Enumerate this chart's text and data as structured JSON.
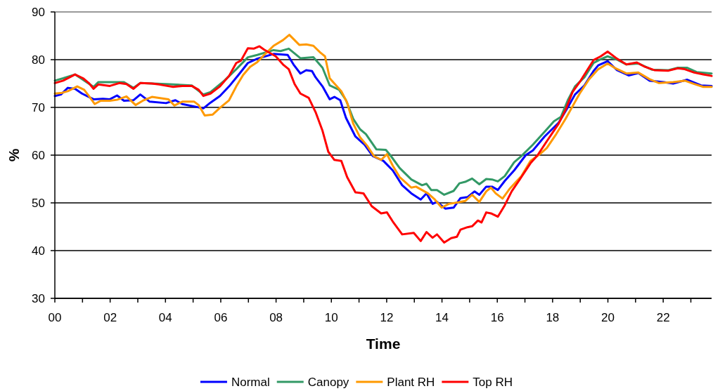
{
  "chart_data": {
    "type": "line",
    "xlabel": "Time",
    "ylabel": "%",
    "xlim": [
      0,
      23.75
    ],
    "ylim": [
      30,
      90
    ],
    "xticks": [
      {
        "value": 0,
        "label": "00"
      },
      {
        "value": 1,
        "label": null
      },
      {
        "value": 2,
        "label": "02"
      },
      {
        "value": 3,
        "label": null
      },
      {
        "value": 4,
        "label": "04"
      },
      {
        "value": 5,
        "label": null
      },
      {
        "value": 6,
        "label": "06"
      },
      {
        "value": 7,
        "label": null
      },
      {
        "value": 8,
        "label": "08"
      },
      {
        "value": 9,
        "label": null
      },
      {
        "value": 10,
        "label": "10"
      },
      {
        "value": 11,
        "label": null
      },
      {
        "value": 12,
        "label": "12"
      },
      {
        "value": 13,
        "label": null
      },
      {
        "value": 14,
        "label": "14"
      },
      {
        "value": 15,
        "label": null
      },
      {
        "value": 16,
        "label": "16"
      },
      {
        "value": 17,
        "label": null
      },
      {
        "value": 18,
        "label": "18"
      },
      {
        "value": 19,
        "label": null
      },
      {
        "value": 20,
        "label": "20"
      },
      {
        "value": 21,
        "label": null
      },
      {
        "value": 22,
        "label": "22"
      },
      {
        "value": 23,
        "label": null
      }
    ],
    "yticks": [
      30,
      40,
      50,
      60,
      70,
      80,
      90
    ],
    "grid": "y",
    "legend": "bottom",
    "line_style": "solid",
    "series": [
      {
        "name": "Normal",
        "color": "#0000ff",
        "x": [
          0,
          0.22,
          0.47,
          0.73,
          0.98,
          1.4,
          1.74,
          1.99,
          2.25,
          2.5,
          2.84,
          3.09,
          3.43,
          4.02,
          4.36,
          4.61,
          5.04,
          5.37,
          5.63,
          5.97,
          6.3,
          6.64,
          6.98,
          7.32,
          7.91,
          8.42,
          8.63,
          8.88,
          9.09,
          9.3,
          9.43,
          9.68,
          9.94,
          10.11,
          10.32,
          10.53,
          10.87,
          11.2,
          11.5,
          11.88,
          12.22,
          12.56,
          12.89,
          13.23,
          13.44,
          13.66,
          13.82,
          14.12,
          14.42,
          14.67,
          14.92,
          15.18,
          15.35,
          15.6,
          15.81,
          16.02,
          16.27,
          16.61,
          17.03,
          17.29,
          17.71,
          18.22,
          18.55,
          18.81,
          19.15,
          19.48,
          19.65,
          19.99,
          20.33,
          20.75,
          21.1,
          21.51,
          22.02,
          22.36,
          22.87,
          23.37,
          23.75
        ],
        "values": [
          72.4,
          72.7,
          74.1,
          73.9,
          72.9,
          71.7,
          71.8,
          71.7,
          72.5,
          71.4,
          71.5,
          72.7,
          71.2,
          70.9,
          71.5,
          70.7,
          70.2,
          69.8,
          71.0,
          72.4,
          74.4,
          76.8,
          79.3,
          80.2,
          81.2,
          81.0,
          79.0,
          77.1,
          77.8,
          77.6,
          76.3,
          74.4,
          71.7,
          72.2,
          71.5,
          67.8,
          63.9,
          62.2,
          59.8,
          58.8,
          56.8,
          53.7,
          52.0,
          50.7,
          52.0,
          49.8,
          50.2,
          48.8,
          49.0,
          51.0,
          51.2,
          52.4,
          51.7,
          53.4,
          53.4,
          52.7,
          54.6,
          56.8,
          60.0,
          61.0,
          63.9,
          66.8,
          70.0,
          72.7,
          74.6,
          77.6,
          78.8,
          79.7,
          77.8,
          76.7,
          77.2,
          75.6,
          75.3,
          75.0,
          75.8,
          74.6,
          74.5
        ]
      },
      {
        "name": "Canopy",
        "color": "#339966",
        "x": [
          0,
          0.3,
          0.73,
          1.4,
          1.57,
          2.5,
          2.84,
          3.09,
          4.02,
          4.95,
          5.37,
          5.63,
          6.13,
          6.56,
          6.98,
          7.32,
          7.91,
          8.16,
          8.46,
          8.88,
          9.35,
          9.68,
          9.94,
          10.28,
          10.53,
          10.79,
          11.04,
          11.25,
          11.63,
          11.97,
          12.13,
          12.47,
          12.89,
          13.28,
          13.44,
          13.61,
          13.82,
          14.08,
          14.42,
          14.63,
          14.84,
          15.09,
          15.35,
          15.6,
          15.81,
          16.02,
          16.27,
          16.61,
          16.87,
          17.29,
          17.71,
          18.05,
          18.3,
          18.55,
          18.81,
          19.15,
          19.48,
          19.74,
          19.99,
          20.33,
          20.67,
          21.1,
          21.6,
          22.19,
          22.53,
          22.87,
          23.21,
          23.75
        ],
        "values": [
          75.6,
          76.1,
          76.9,
          74.3,
          75.3,
          75.3,
          74.1,
          75.1,
          74.9,
          74.6,
          72.7,
          73.2,
          75.6,
          78.0,
          80.5,
          81.0,
          82.0,
          81.8,
          82.3,
          80.3,
          80.5,
          78.3,
          74.6,
          73.7,
          71.5,
          67.6,
          65.4,
          64.4,
          61.2,
          61.1,
          60.0,
          57.3,
          54.9,
          53.7,
          54.0,
          52.7,
          52.7,
          51.7,
          52.5,
          54.1,
          54.4,
          55.1,
          53.9,
          55.0,
          54.9,
          54.5,
          55.6,
          58.5,
          59.8,
          62.2,
          64.9,
          67.1,
          68.0,
          71.5,
          74.4,
          76.3,
          79.3,
          80.1,
          80.7,
          80.0,
          79.0,
          79.2,
          77.9,
          77.8,
          78.3,
          78.3,
          77.4,
          77.1
        ]
      },
      {
        "name": "Plant RH",
        "color": "#ff9900",
        "x": [
          0,
          0.22,
          0.47,
          0.81,
          1.06,
          1.23,
          1.44,
          1.66,
          1.99,
          2.25,
          2.59,
          2.92,
          3.18,
          3.51,
          4.11,
          4.32,
          4.61,
          5.04,
          5.2,
          5.42,
          5.71,
          5.97,
          6.3,
          6.56,
          6.81,
          7.06,
          7.32,
          7.66,
          7.91,
          8.25,
          8.48,
          8.84,
          9.09,
          9.35,
          9.6,
          9.77,
          9.94,
          10.36,
          10.57,
          10.79,
          11.04,
          11.29,
          11.54,
          11.8,
          12.01,
          12.22,
          12.47,
          12.89,
          13.06,
          13.49,
          13.74,
          13.99,
          14.25,
          14.59,
          14.84,
          15.09,
          15.35,
          15.6,
          15.77,
          15.94,
          16.19,
          16.44,
          16.87,
          17.2,
          17.54,
          17.79,
          18.13,
          18.47,
          18.72,
          18.98,
          19.32,
          19.65,
          19.99,
          20.24,
          20.67,
          21.1,
          21.51,
          21.85,
          22.36,
          22.78,
          23.12,
          23.45,
          23.75
        ],
        "values": [
          72.9,
          73.0,
          73.4,
          74.4,
          73.7,
          72.4,
          70.7,
          71.4,
          71.4,
          71.6,
          72.3,
          70.5,
          71.4,
          72.2,
          71.7,
          70.4,
          71.2,
          71.2,
          70.5,
          68.3,
          68.5,
          69.9,
          71.5,
          74.4,
          76.8,
          78.5,
          79.5,
          81.5,
          82.9,
          84.1,
          85.2,
          83.1,
          83.2,
          82.9,
          81.5,
          80.7,
          76.1,
          73.4,
          71.0,
          66.6,
          63.7,
          62.0,
          59.8,
          59.0,
          60.2,
          57.8,
          55.4,
          53.2,
          53.4,
          52.0,
          50.7,
          49.0,
          49.8,
          50.1,
          50.4,
          51.7,
          50.2,
          52.4,
          53.2,
          52.0,
          50.9,
          52.9,
          55.6,
          58.8,
          60.2,
          61.5,
          64.4,
          67.6,
          70.2,
          72.9,
          75.9,
          78.0,
          79.2,
          78.3,
          77.1,
          77.3,
          75.9,
          75.1,
          75.3,
          75.6,
          74.9,
          74.3,
          74.3
        ]
      },
      {
        "name": "Top RH",
        "color": "#ff0000",
        "x": [
          0,
          0.3,
          0.73,
          1.02,
          1.23,
          1.4,
          1.57,
          1.99,
          2.33,
          2.59,
          2.84,
          3.09,
          3.51,
          3.77,
          4.28,
          4.61,
          4.95,
          5.2,
          5.37,
          5.63,
          5.97,
          6.3,
          6.56,
          6.73,
          6.98,
          7.19,
          7.4,
          7.57,
          7.99,
          8.25,
          8.46,
          8.67,
          8.88,
          9.18,
          9.43,
          9.68,
          9.89,
          10.11,
          10.36,
          10.57,
          10.87,
          11.16,
          11.46,
          11.8,
          12.01,
          12.22,
          12.56,
          12.98,
          13.23,
          13.44,
          13.66,
          13.82,
          14.08,
          14.33,
          14.54,
          14.67,
          14.92,
          15.09,
          15.3,
          15.43,
          15.6,
          15.77,
          16.02,
          16.27,
          16.52,
          16.87,
          17.2,
          17.46,
          17.79,
          18.22,
          18.47,
          18.72,
          18.98,
          19.23,
          19.48,
          19.74,
          19.99,
          20.33,
          20.67,
          21.05,
          21.34,
          21.68,
          22.19,
          22.53,
          22.78,
          23.12,
          23.45,
          23.75
        ],
        "values": [
          75.1,
          75.6,
          76.9,
          76.1,
          75.1,
          73.9,
          74.8,
          74.5,
          75.1,
          74.9,
          73.9,
          75.1,
          75.0,
          74.8,
          74.3,
          74.5,
          74.5,
          73.7,
          72.4,
          72.9,
          74.4,
          76.6,
          79.3,
          79.8,
          82.4,
          82.3,
          82.8,
          82.1,
          80.7,
          79.0,
          78.0,
          74.9,
          72.9,
          72.0,
          69.0,
          65.1,
          60.7,
          59.0,
          58.8,
          55.4,
          52.2,
          52.0,
          49.3,
          47.8,
          48.0,
          46.1,
          43.4,
          43.7,
          42.0,
          43.9,
          42.7,
          43.4,
          41.7,
          42.6,
          42.9,
          44.4,
          44.9,
          45.1,
          46.3,
          45.9,
          48.0,
          47.8,
          47.1,
          49.5,
          52.4,
          55.4,
          58.3,
          60.0,
          62.9,
          66.6,
          69.5,
          73.2,
          75.3,
          77.6,
          79.9,
          80.7,
          81.7,
          80.2,
          79.0,
          79.4,
          78.5,
          77.8,
          77.7,
          78.2,
          78.0,
          77.3,
          76.9,
          76.6
        ]
      }
    ]
  }
}
